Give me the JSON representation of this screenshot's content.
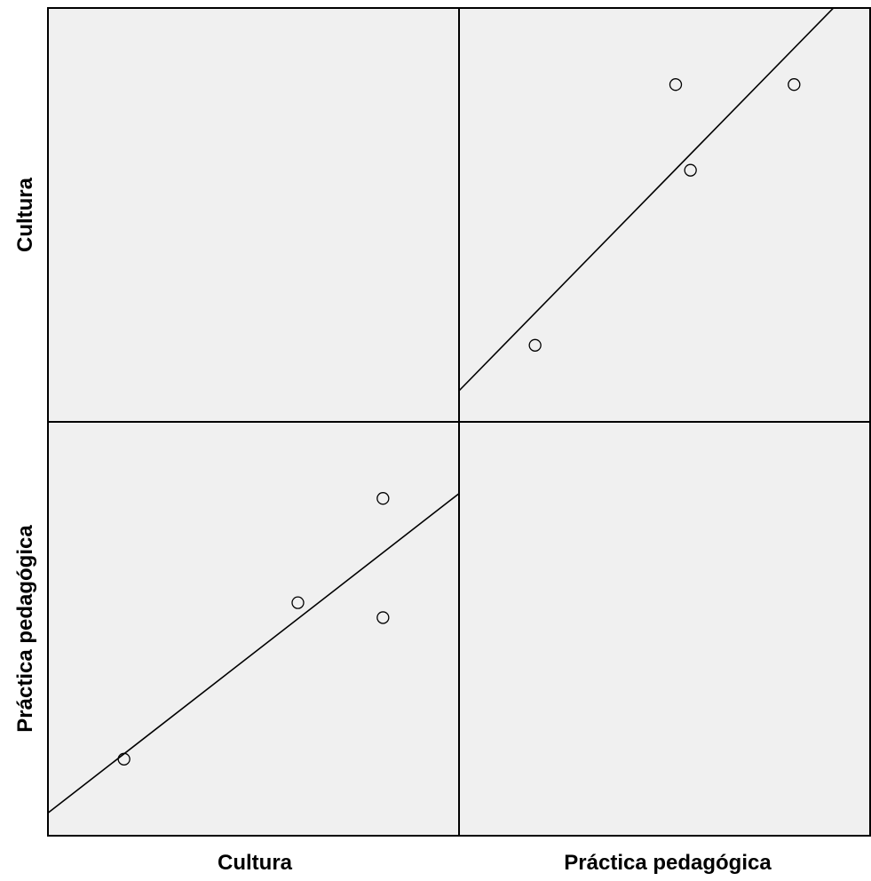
{
  "chart_data": {
    "type": "scatter",
    "layout": "scatterplot-matrix",
    "variables": [
      "Cultura",
      "Práctica pedagógica"
    ],
    "row_labels": [
      "Cultura",
      "Práctica pedagógica"
    ],
    "column_labels": [
      "Cultura",
      "Práctica pedagógica"
    ],
    "points": [
      {
        "Cultura": 0.15,
        "Práctica pedagógica": 0.15
      },
      {
        "Cultura": 0.62,
        "Práctica pedagógica": 0.57
      },
      {
        "Cultura": 0.85,
        "Práctica pedagógica": 0.85
      },
      {
        "Cultura": 0.85,
        "Práctica pedagógica": 0.53
      }
    ],
    "fit_line": "linear",
    "diagonal_panels": "empty",
    "tick_labels": false,
    "grid": false,
    "background_color": "#f0f0f0",
    "frame_color": "#000000",
    "marker": "open-circle"
  }
}
